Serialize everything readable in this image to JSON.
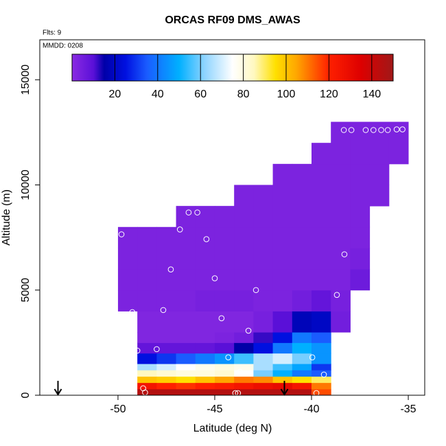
{
  "chart_data": {
    "type": "heatmap",
    "title": "ORCAS RF09 DMS_AWAS",
    "notes": [
      "Flts: 9",
      "MMDD: 0208"
    ],
    "xlabel": "Latitude (deg N)",
    "ylabel": "Altitude (m)",
    "xlim": [
      -54.04,
      -34.15
    ],
    "ylim": [
      0,
      16900
    ],
    "xticks": [
      -50,
      -45,
      -40,
      -35
    ],
    "yticks": [
      0,
      5000,
      10000,
      15000
    ],
    "cells": {
      "x_edges": [
        -50,
        -49,
        -48,
        -47,
        -46,
        -45,
        -44,
        -43,
        -42,
        -41,
        -40,
        -39,
        -38,
        -37,
        -36,
        -35
      ],
      "y_edges": [
        0,
        300,
        600,
        900,
        1200,
        1500,
        2000,
        2500,
        3000,
        4000,
        5000,
        6000,
        7000,
        8000,
        9000,
        10000,
        11000,
        12000,
        13000
      ],
      "values": [
        [
          null,
          null,
          null,
          null,
          null,
          null,
          null,
          null,
          null,
          3,
          3,
          3,
          3,
          null,
          null,
          null,
          null,
          null
        ],
        [
          145,
          125,
          100,
          85,
          65,
          25,
          8,
          2,
          2,
          3,
          3,
          3,
          3,
          null,
          null,
          null,
          null,
          null
        ],
        [
          145,
          120,
          98,
          82,
          70,
          30,
          8,
          2,
          2,
          3,
          3,
          3,
          3,
          null,
          null,
          null,
          null,
          null
        ],
        [
          145,
          118,
          95,
          80,
          75,
          35,
          8,
          2,
          2,
          3,
          3,
          3,
          3,
          3,
          null,
          null,
          null,
          null
        ],
        [
          145,
          120,
          100,
          80,
          78,
          40,
          8,
          2,
          2,
          4,
          3,
          3,
          3,
          3,
          null,
          null,
          null,
          null
        ],
        [
          145,
          122,
          105,
          82,
          80,
          45,
          10,
          3,
          2,
          4,
          3,
          3,
          3,
          3,
          null,
          null,
          null,
          null
        ],
        [
          145,
          125,
          110,
          75,
          78,
          55,
          15,
          5,
          2,
          4,
          3,
          3,
          3,
          3,
          3,
          null,
          null,
          null
        ],
        [
          145,
          128,
          108,
          60,
          65,
          65,
          25,
          12,
          4,
          3,
          3,
          3,
          3,
          3,
          3,
          null,
          null,
          null
        ],
        [
          145,
          130,
          100,
          50,
          55,
          70,
          40,
          25,
          10,
          3,
          3,
          3,
          3,
          3,
          3,
          3,
          null,
          null
        ],
        [
          145,
          125,
          95,
          40,
          48,
          60,
          50,
          40,
          18,
          5,
          3,
          3,
          3,
          3,
          3,
          3,
          null,
          null
        ],
        [
          115,
          110,
          90,
          35,
          30,
          45,
          45,
          35,
          20,
          8,
          3,
          3,
          3,
          3,
          3,
          3,
          3,
          null
        ],
        [
          null,
          null,
          null,
          null,
          null,
          null,
          null,
          null,
          5,
          4,
          3,
          3,
          3,
          3,
          3,
          3,
          3,
          3
        ],
        [
          null,
          null,
          null,
          null,
          null,
          null,
          null,
          null,
          null,
          null,
          6,
          4,
          3,
          3,
          3,
          3,
          3,
          3
        ],
        [
          null,
          null,
          null,
          null,
          null,
          null,
          null,
          null,
          null,
          null,
          null,
          null,
          null,
          null,
          3,
          3,
          3,
          3
        ],
        [
          null,
          null,
          null,
          null,
          null,
          null,
          null,
          null,
          null,
          null,
          null,
          null,
          null,
          null,
          null,
          null,
          3,
          3
        ]
      ]
    },
    "colorscale": [
      [
        0,
        "#8a2be2"
      ],
      [
        10,
        "#5a10d8"
      ],
      [
        15,
        "#0000a8"
      ],
      [
        25,
        "#0010e0"
      ],
      [
        35,
        "#1a5cff"
      ],
      [
        50,
        "#00b0ff"
      ],
      [
        62,
        "#8fd4ff"
      ],
      [
        75,
        "#ffffff"
      ],
      [
        85,
        "#fff8c0"
      ],
      [
        95,
        "#ffe000"
      ],
      [
        105,
        "#ffa500"
      ],
      [
        120,
        "#ff2000"
      ],
      [
        135,
        "#dd0000"
      ],
      [
        150,
        "#a01818"
      ]
    ],
    "colorbar": {
      "lim": [
        0,
        150
      ],
      "ticks": [
        20,
        40,
        60,
        80,
        100,
        120,
        140
      ]
    },
    "observations": {
      "color": "#ffffff",
      "x": [
        -49.82,
        -49.26,
        -49.0,
        -48.0,
        -47.66,
        -47.27,
        -46.8,
        -46.35,
        -45.9,
        -45.43,
        -45.0,
        -44.65,
        -44.3,
        -43.94,
        -43.8,
        -43.26,
        -42.87,
        -39.96,
        -39.36,
        -39.75,
        -38.69,
        -38.3,
        -38.33,
        -37.94,
        -37.2,
        -36.8,
        -36.4,
        -36.06,
        -35.6,
        -35.3,
        -48.7,
        -48.6,
        -43.7
      ],
      "y": [
        7650,
        3950,
        2120,
        2190,
        4050,
        5980,
        7880,
        8690,
        8690,
        7420,
        5560,
        3660,
        1800,
        100,
        100,
        3070,
        5000,
        1800,
        980,
        100,
        4770,
        6700,
        12610,
        12610,
        12610,
        12610,
        12610,
        12610,
        12640,
        12640,
        330,
        130,
        1110
      ]
    },
    "arrows_x": [
      -53.1,
      -41.4
    ]
  }
}
